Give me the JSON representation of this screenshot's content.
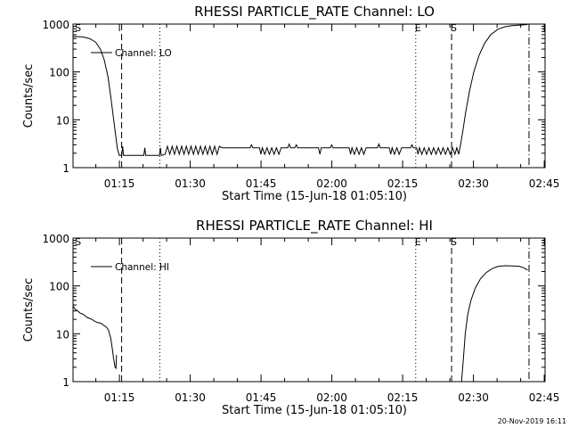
{
  "footer": {
    "timestamp": "20-Nov-2019 16:11"
  },
  "chart_data": [
    {
      "type": "line",
      "title": "RHESSI PARTICLE_RATE Channel: LO",
      "xlabel": "Start Time (15-Jun-18 01:05:10)",
      "ylabel": "Counts/sec",
      "yscale": "log",
      "ylim": [
        1,
        1000
      ],
      "xlim_minutes_after_start": [
        0,
        100
      ],
      "yticks": [
        "1",
        "10",
        "100",
        "1000"
      ],
      "xticks": [
        {
          "label": "01:15",
          "t": 9.83
        },
        {
          "label": "01:30",
          "t": 24.83
        },
        {
          "label": "01:45",
          "t": 39.83
        },
        {
          "label": "02:00",
          "t": 54.83
        },
        {
          "label": "02:15",
          "t": 69.83
        },
        {
          "label": "02:30",
          "t": 84.83
        },
        {
          "label": "02:45",
          "t": 99.83
        }
      ],
      "legend": {
        "label": "Channel: LO",
        "placement": "top-left"
      },
      "markers": [
        {
          "label": "S",
          "t": 0.6,
          "style": "none"
        },
        {
          "t": 10.3,
          "style": "dashed"
        },
        {
          "t": 18.4,
          "style": "dotted"
        },
        {
          "label": "E",
          "t": 72.6,
          "style": "dotted"
        },
        {
          "label": "S",
          "t": 80.2,
          "style": "dashed"
        },
        {
          "t": 96.6,
          "style": "dashdot"
        }
      ],
      "series": [
        {
          "points": [
            [
              0,
              550
            ],
            [
              2,
              540
            ],
            [
              3.5,
              500
            ],
            [
              4.8,
              420
            ],
            [
              5.8,
              300
            ],
            [
              6.6,
              180
            ],
            [
              7.4,
              80
            ],
            [
              8.0,
              30
            ],
            [
              8.5,
              12
            ],
            [
              9.0,
              5
            ],
            [
              9.4,
              2.5
            ],
            [
              9.8,
              1.8
            ],
            [
              10.3,
              1.8
            ],
            [
              10.5,
              2.8
            ],
            [
              10.7,
              1.8
            ],
            [
              15.0,
              1.8
            ],
            [
              15.2,
              2.6
            ],
            [
              15.4,
              1.8
            ],
            [
              18.3,
              1.8
            ],
            [
              18.5,
              2.6
            ],
            [
              18.7,
              1.8
            ],
            [
              19.5,
              1.9
            ],
            [
              20.0,
              2.8
            ],
            [
              20.5,
              1.9
            ],
            [
              21.0,
              2.8
            ],
            [
              21.5,
              1.9
            ],
            [
              22.0,
              2.8
            ],
            [
              22.5,
              1.9
            ],
            [
              23.0,
              2.8
            ],
            [
              23.5,
              1.9
            ],
            [
              24.0,
              2.8
            ],
            [
              24.5,
              1.9
            ],
            [
              25.0,
              2.8
            ],
            [
              25.5,
              1.9
            ],
            [
              26.0,
              2.8
            ],
            [
              26.5,
              1.9
            ],
            [
              27.0,
              2.8
            ],
            [
              27.5,
              1.9
            ],
            [
              28.0,
              2.8
            ],
            [
              28.5,
              1.9
            ],
            [
              29.0,
              2.8
            ],
            [
              29.5,
              1.9
            ],
            [
              30.0,
              2.8
            ],
            [
              30.5,
              1.9
            ],
            [
              31.0,
              2.8
            ],
            [
              31.5,
              2.6
            ],
            [
              37.5,
              2.6
            ],
            [
              37.8,
              3.0
            ],
            [
              38.1,
              2.6
            ],
            [
              39.5,
              2.6
            ],
            [
              39.8,
              1.9
            ],
            [
              40.1,
              2.6
            ],
            [
              40.6,
              1.9
            ],
            [
              41.1,
              2.6
            ],
            [
              41.6,
              1.9
            ],
            [
              42.1,
              2.6
            ],
            [
              42.6,
              1.9
            ],
            [
              43.1,
              2.6
            ],
            [
              43.6,
              1.9
            ],
            [
              44.1,
              2.6
            ],
            [
              45.5,
              2.6
            ],
            [
              45.8,
              3.1
            ],
            [
              46.1,
              2.6
            ],
            [
              47.0,
              2.6
            ],
            [
              47.3,
              3.0
            ],
            [
              47.6,
              2.6
            ],
            [
              52.0,
              2.6
            ],
            [
              52.3,
              1.9
            ],
            [
              52.6,
              2.6
            ],
            [
              54.5,
              2.6
            ],
            [
              54.8,
              3.0
            ],
            [
              55.1,
              2.6
            ],
            [
              58.5,
              2.6
            ],
            [
              58.8,
              1.9
            ],
            [
              59.1,
              2.6
            ],
            [
              59.6,
              1.9
            ],
            [
              60.1,
              2.6
            ],
            [
              60.6,
              1.9
            ],
            [
              61.1,
              2.6
            ],
            [
              61.6,
              1.9
            ],
            [
              62.1,
              2.6
            ],
            [
              64.5,
              2.6
            ],
            [
              64.8,
              3.1
            ],
            [
              65.1,
              2.6
            ],
            [
              67.0,
              2.6
            ],
            [
              67.3,
              1.9
            ],
            [
              67.6,
              2.6
            ],
            [
              68.1,
              1.9
            ],
            [
              68.6,
              2.6
            ],
            [
              69.1,
              1.9
            ],
            [
              69.6,
              2.6
            ],
            [
              71.5,
              2.6
            ],
            [
              71.8,
              3.0
            ],
            [
              72.1,
              2.6
            ],
            [
              72.8,
              2.6
            ],
            [
              73.1,
              1.9
            ],
            [
              73.4,
              2.6
            ],
            [
              73.9,
              1.9
            ],
            [
              74.4,
              2.6
            ],
            [
              74.9,
              1.9
            ],
            [
              75.4,
              2.6
            ],
            [
              75.9,
              1.9
            ],
            [
              76.4,
              2.6
            ],
            [
              76.9,
              1.9
            ],
            [
              77.4,
              2.6
            ],
            [
              77.9,
              1.9
            ],
            [
              78.4,
              2.6
            ],
            [
              78.9,
              1.9
            ],
            [
              79.4,
              2.6
            ],
            [
              79.9,
              1.9
            ],
            [
              80.4,
              2.6
            ],
            [
              80.9,
              1.9
            ],
            [
              81.3,
              2.6
            ],
            [
              81.7,
              1.9
            ],
            [
              82.1,
              3
            ],
            [
              82.6,
              6
            ],
            [
              83.2,
              15
            ],
            [
              84.0,
              40
            ],
            [
              84.9,
              100
            ],
            [
              86.0,
              220
            ],
            [
              87.2,
              400
            ],
            [
              88.5,
              600
            ],
            [
              90.0,
              780
            ],
            [
              91.5,
              880
            ],
            [
              93.0,
              930
            ],
            [
              95.0,
              960
            ],
            [
              96.3,
              980
            ]
          ]
        }
      ]
    },
    {
      "type": "line",
      "title": "RHESSI PARTICLE_RATE Channel: HI",
      "xlabel": "Start Time (15-Jun-18 01:05:10)",
      "ylabel": "Counts/sec",
      "yscale": "log",
      "ylim": [
        1,
        1000
      ],
      "xlim_minutes_after_start": [
        0,
        100
      ],
      "yticks": [
        "1",
        "10",
        "100",
        "1000"
      ],
      "xticks": [
        {
          "label": "01:15",
          "t": 9.83
        },
        {
          "label": "01:30",
          "t": 24.83
        },
        {
          "label": "01:45",
          "t": 39.83
        },
        {
          "label": "02:00",
          "t": 54.83
        },
        {
          "label": "02:15",
          "t": 69.83
        },
        {
          "label": "02:30",
          "t": 84.83
        },
        {
          "label": "02:45",
          "t": 99.83
        }
      ],
      "legend": {
        "label": "Channel: HI",
        "placement": "top-left"
      },
      "markers": [
        {
          "label": "S",
          "t": 0.6,
          "style": "none"
        },
        {
          "t": 10.3,
          "style": "dashed"
        },
        {
          "t": 18.4,
          "style": "dotted"
        },
        {
          "label": "E",
          "t": 72.6,
          "style": "dotted"
        },
        {
          "label": "S",
          "t": 80.2,
          "style": "dashed"
        },
        {
          "t": 96.6,
          "style": "dashdot"
        }
      ],
      "series": [
        {
          "segments": [
            [
              [
                0,
                38
              ],
              [
                0.5,
                32
              ],
              [
                1.0,
                30
              ],
              [
                1.5,
                27
              ],
              [
                2.0,
                26
              ],
              [
                2.5,
                24
              ],
              [
                3.0,
                22
              ],
              [
                3.5,
                21
              ],
              [
                4.0,
                20
              ],
              [
                4.5,
                18.5
              ],
              [
                5.0,
                17.5
              ],
              [
                5.5,
                17
              ],
              [
                6.0,
                16.5
              ],
              [
                6.5,
                15
              ],
              [
                7.0,
                14
              ],
              [
                7.5,
                12
              ],
              [
                8.0,
                8
              ],
              [
                8.3,
                5
              ],
              [
                8.6,
                3
              ],
              [
                8.9,
                2
              ],
              [
                9.1,
                1.9
              ],
              [
                9.2,
                3.6
              ]
            ],
            [
              [
                82.3,
                1
              ],
              [
                82.7,
                3
              ],
              [
                83.1,
                10
              ],
              [
                83.6,
                25
              ],
              [
                84.3,
                50
              ],
              [
                85.2,
                90
              ],
              [
                86.3,
                140
              ],
              [
                87.5,
                190
              ],
              [
                88.8,
                230
              ],
              [
                90.0,
                255
              ],
              [
                91.5,
                265
              ],
              [
                93.0,
                262
              ],
              [
                94.5,
                258
              ],
              [
                95.5,
                240
              ],
              [
                96.3,
                215
              ]
            ]
          ]
        }
      ]
    }
  ]
}
